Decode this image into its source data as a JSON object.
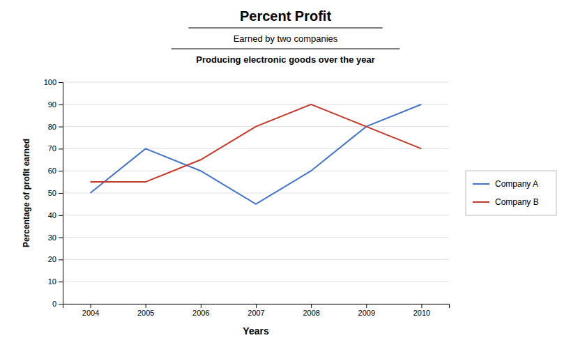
{
  "chart_data": {
    "type": "line",
    "title": "Percent Profit",
    "subtitle": [
      "Earned by two companies",
      "Producing electronic goods over the year"
    ],
    "xlabel": "Years",
    "ylabel": "Percentage of profit earned",
    "x": [
      2004,
      2005,
      2006,
      2007,
      2008,
      2009,
      2010
    ],
    "series": [
      {
        "name": "Company A",
        "color": "#4472C4",
        "values": [
          50,
          70,
          60,
          45,
          60,
          80,
          90
        ]
      },
      {
        "name": "Company B",
        "color": "#C0392B",
        "values": [
          55,
          55,
          65,
          80,
          90,
          80,
          70
        ]
      }
    ],
    "xlim": [
      2003.5,
      2010.5
    ],
    "xticks": [
      2004,
      2005,
      2006,
      2007,
      2008,
      2009,
      2010
    ],
    "ylim": [
      0,
      100
    ],
    "yticks": [
      0,
      10,
      20,
      30,
      40,
      50,
      60,
      70,
      80,
      90,
      100
    ],
    "grid": true,
    "legend": "right"
  }
}
